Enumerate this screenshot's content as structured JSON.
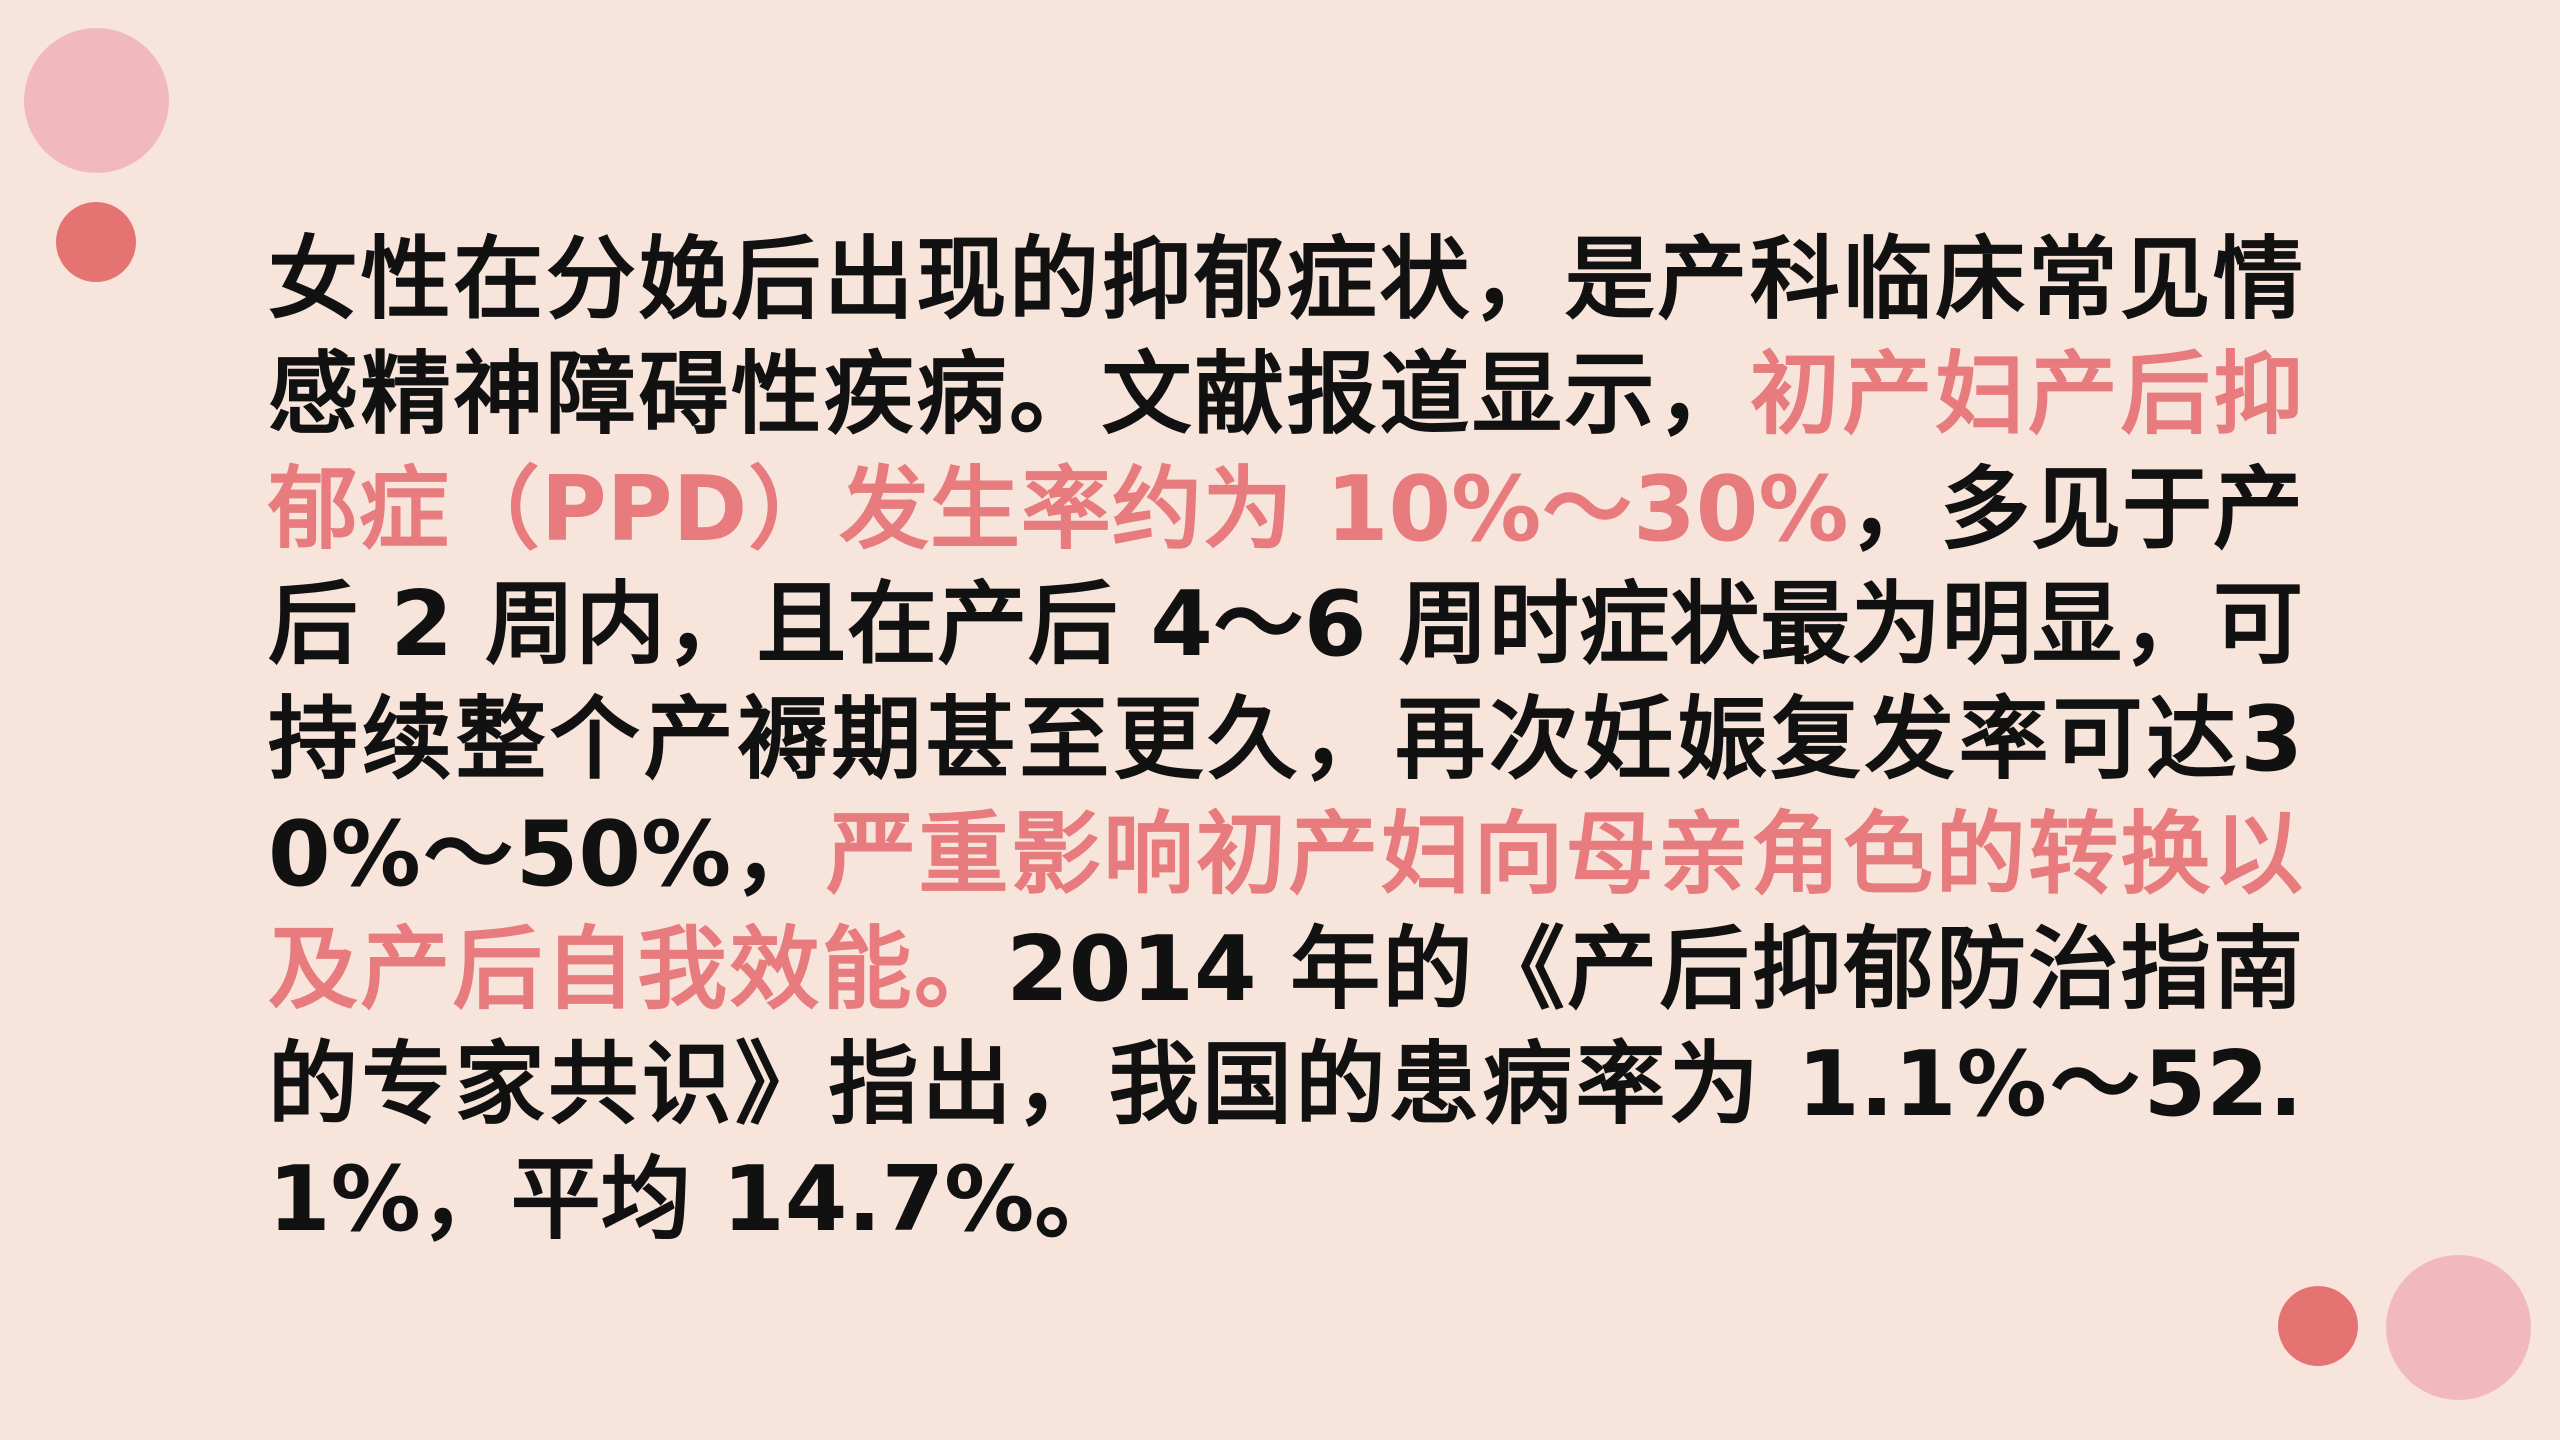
{
  "decor": {
    "accent_pink": "#f2b9bd",
    "accent_red": "#e57371",
    "background": "#f7e4db",
    "highlight_color": "#e77b7d"
  },
  "paragraph": {
    "seg1": "女性在分娩后出现的抑郁症状，是产科临床常见情感精神障碍性疾病。文献报道显示，",
    "seg2": "初产妇产后抑郁症（PPD）发生率约为 10%～30%",
    "seg3": "，多见于产后 2 周内，且在产后 4～6 周时症状最为明显，可持续整个产褥期甚至更久，再次妊娠复发率可达30%～50%，",
    "seg4": "严重影响初产妇向母亲角色的转换以及产后自我效能。",
    "seg5": "2014 年的《产后抑郁防治指南的专家共识》指出，我国的患病率为 1.1%～52.1%，平均 14.7%。"
  }
}
